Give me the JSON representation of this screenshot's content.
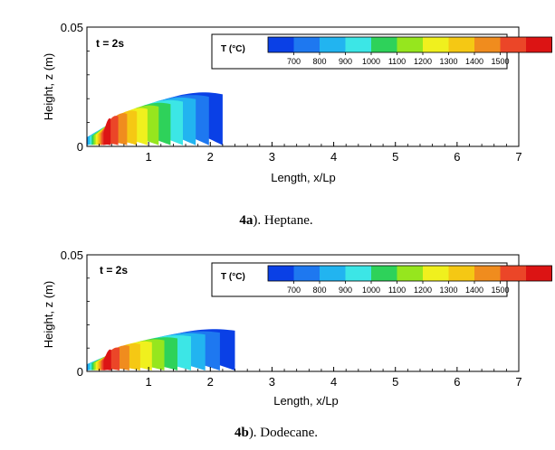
{
  "colors": {
    "flame_scale": [
      "#0a40e6",
      "#1e78f0",
      "#22b4f0",
      "#3ce6e6",
      "#2ed25a",
      "#96e61e",
      "#f0f01e",
      "#f5c814",
      "#f08c1e",
      "#eb4628",
      "#dc1414"
    ],
    "border": "#000000"
  },
  "chart_data": [
    {
      "type": "contour",
      "panel": "4a",
      "time_label": "t = 2s",
      "xlabel": "Length, x/Lp",
      "ylabel": "Height, z (m)",
      "xlim": [
        0,
        7
      ],
      "ylim": [
        0,
        0.05
      ],
      "x_ticks": [
        "1",
        "2",
        "3",
        "4",
        "5",
        "6",
        "7"
      ],
      "y_ticks": [
        "0",
        "0.05"
      ],
      "legend": {
        "title": "T (°C)",
        "levels": [
          "700",
          "800",
          "900",
          "1000",
          "1100",
          "1200",
          "1300",
          "1400",
          "1500"
        ]
      },
      "flame": {
        "tip_x": 2.2,
        "max_height": 0.025,
        "peak_temperature": 1500,
        "hot_core_x": 0.3
      },
      "caption": {
        "bold": "4a",
        "text": "). Heptane."
      }
    },
    {
      "type": "contour",
      "panel": "4b",
      "time_label": "t = 2s",
      "xlabel": "Length, x/Lp",
      "ylabel": "Height, z (m)",
      "xlim": [
        0,
        7
      ],
      "ylim": [
        0,
        0.05
      ],
      "x_ticks": [
        "1",
        "2",
        "3",
        "4",
        "5",
        "6",
        "7"
      ],
      "y_ticks": [
        "0",
        "0.05"
      ],
      "legend": {
        "title": "T (°C)",
        "levels": [
          "700",
          "800",
          "900",
          "1000",
          "1100",
          "1200",
          "1300",
          "1400",
          "1500"
        ]
      },
      "flame": {
        "tip_x": 2.4,
        "max_height": 0.02,
        "peak_temperature": 1500,
        "hot_core_x": 0.3
      },
      "caption": {
        "bold": "4b",
        "text": "). Dodecane."
      }
    }
  ]
}
